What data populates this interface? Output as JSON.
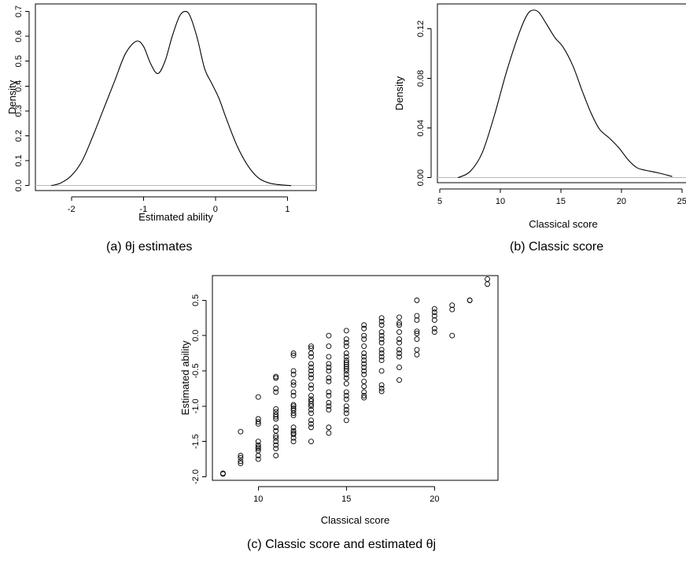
{
  "chart_data": [
    {
      "type": "line",
      "caption": "(a) θj estimates",
      "xlabel": "Estimated ability",
      "ylabel": "Density",
      "xlim": [
        -2.5,
        1.4
      ],
      "ylim": [
        -0.02,
        0.73
      ],
      "xticks": [
        -2,
        -1,
        0,
        1
      ],
      "xtick_labels": [
        "-2",
        "-1",
        "0",
        "1"
      ],
      "yticks": [
        0.0,
        0.1,
        0.2,
        0.3,
        0.4,
        0.5,
        0.6,
        0.7
      ],
      "ytick_labels": [
        "0.0",
        "0.1",
        "0.2",
        "0.3",
        "0.4",
        "0.5",
        "0.6",
        "0.7"
      ],
      "x": [
        -2.28,
        -2.15,
        -2.0,
        -1.85,
        -1.7,
        -1.55,
        -1.4,
        -1.25,
        -1.1,
        -1.0,
        -0.9,
        -0.8,
        -0.7,
        -0.6,
        -0.5,
        -0.42,
        -0.35,
        -0.25,
        -0.15,
        -0.05,
        0.05,
        0.15,
        0.3,
        0.45,
        0.6,
        0.75,
        0.9,
        1.05
      ],
      "y": [
        0.0,
        0.01,
        0.04,
        0.1,
        0.2,
        0.31,
        0.42,
        0.53,
        0.58,
        0.56,
        0.49,
        0.45,
        0.5,
        0.6,
        0.68,
        0.7,
        0.68,
        0.59,
        0.47,
        0.41,
        0.35,
        0.27,
        0.16,
        0.08,
        0.03,
        0.01,
        0.003,
        0.0
      ]
    },
    {
      "type": "line",
      "caption": "(b) Classic score",
      "xlabel": "Classical score",
      "ylabel": "Density",
      "xlim": [
        4.8,
        25.6
      ],
      "ylim": [
        -0.004,
        0.14
      ],
      "xticks": [
        5,
        10,
        15,
        20,
        25
      ],
      "xtick_labels": [
        "5",
        "10",
        "15",
        "20",
        "25"
      ],
      "yticks": [
        0.0,
        0.04,
        0.08,
        0.12
      ],
      "ytick_labels": [
        "0.00",
        "0.04",
        "0.08",
        "0.12"
      ],
      "x": [
        6.5,
        7.5,
        8.5,
        9.5,
        10.5,
        11.5,
        12.2,
        12.7,
        13.2,
        13.8,
        14.5,
        15.2,
        16.0,
        16.8,
        17.5,
        18.2,
        19.0,
        19.8,
        20.6,
        21.3,
        22.0,
        23.0,
        24.2
      ],
      "y": [
        0.0,
        0.005,
        0.02,
        0.05,
        0.085,
        0.115,
        0.131,
        0.135,
        0.133,
        0.124,
        0.113,
        0.105,
        0.09,
        0.069,
        0.052,
        0.039,
        0.032,
        0.024,
        0.014,
        0.008,
        0.006,
        0.004,
        0.001
      ]
    },
    {
      "type": "scatter",
      "caption": "(c) Classic score and estimated θj",
      "xlabel": "Classical score",
      "ylabel": "Estimated ability",
      "xlim": [
        7.4,
        23.6
      ],
      "ylim": [
        -2.05,
        0.85
      ],
      "xticks": [
        10,
        15,
        20
      ],
      "xtick_labels": [
        "10",
        "15",
        "20"
      ],
      "yticks": [
        -2.0,
        -1.5,
        -1.0,
        -0.5,
        0.0,
        0.5
      ],
      "ytick_labels": [
        "-2.0",
        "-1.5",
        "-1.0",
        "-0.5",
        "0.0",
        "0.5"
      ],
      "points": [
        [
          8,
          -1.95
        ],
        [
          8,
          -1.96
        ],
        [
          9,
          -1.36
        ],
        [
          9,
          -1.7
        ],
        [
          9,
          -1.73
        ],
        [
          9,
          -1.78
        ],
        [
          9,
          -1.81
        ],
        [
          10,
          -0.87
        ],
        [
          10,
          -1.18
        ],
        [
          10,
          -1.22
        ],
        [
          10,
          -1.25
        ],
        [
          10,
          -1.5
        ],
        [
          10,
          -1.55
        ],
        [
          10,
          -1.58
        ],
        [
          10,
          -1.6
        ],
        [
          10,
          -1.63
        ],
        [
          10,
          -1.7
        ],
        [
          10,
          -1.75
        ],
        [
          11,
          -0.58
        ],
        [
          11,
          -0.6
        ],
        [
          11,
          -0.75
        ],
        [
          11,
          -0.8
        ],
        [
          11,
          -1.04
        ],
        [
          11,
          -1.08
        ],
        [
          11,
          -1.12
        ],
        [
          11,
          -1.15
        ],
        [
          11,
          -1.18
        ],
        [
          11,
          -1.3
        ],
        [
          11,
          -1.35
        ],
        [
          11,
          -1.42
        ],
        [
          11,
          -1.45
        ],
        [
          11,
          -1.5
        ],
        [
          11,
          -1.55
        ],
        [
          11,
          -1.6
        ],
        [
          11,
          -1.7
        ],
        [
          12,
          -0.25
        ],
        [
          12,
          -0.28
        ],
        [
          12,
          -0.5
        ],
        [
          12,
          -0.55
        ],
        [
          12,
          -0.66
        ],
        [
          12,
          -0.7
        ],
        [
          12,
          -0.8
        ],
        [
          12,
          -0.85
        ],
        [
          12,
          -0.98
        ],
        [
          12,
          -1.0
        ],
        [
          12,
          -1.03
        ],
        [
          12,
          -1.06
        ],
        [
          12,
          -1.1
        ],
        [
          12,
          -1.13
        ],
        [
          12,
          -1.3
        ],
        [
          12,
          -1.35
        ],
        [
          12,
          -1.38
        ],
        [
          12,
          -1.4
        ],
        [
          12,
          -1.45
        ],
        [
          12,
          -1.5
        ],
        [
          13,
          -0.15
        ],
        [
          13,
          -0.18
        ],
        [
          13,
          -0.25
        ],
        [
          13,
          -0.3
        ],
        [
          13,
          -0.4
        ],
        [
          13,
          -0.45
        ],
        [
          13,
          -0.5
        ],
        [
          13,
          -0.55
        ],
        [
          13,
          -0.6
        ],
        [
          13,
          -0.7
        ],
        [
          13,
          -0.75
        ],
        [
          13,
          -0.85
        ],
        [
          13,
          -0.9
        ],
        [
          13,
          -0.93
        ],
        [
          13,
          -0.97
        ],
        [
          13,
          -1.0
        ],
        [
          13,
          -1.05
        ],
        [
          13,
          -1.1
        ],
        [
          13,
          -1.2
        ],
        [
          13,
          -1.25
        ],
        [
          13,
          -1.3
        ],
        [
          13,
          -1.5
        ],
        [
          14,
          0.0
        ],
        [
          14,
          -0.15
        ],
        [
          14,
          -0.3
        ],
        [
          14,
          -0.4
        ],
        [
          14,
          -0.45
        ],
        [
          14,
          -0.5
        ],
        [
          14,
          -0.6
        ],
        [
          14,
          -0.65
        ],
        [
          14,
          -0.8
        ],
        [
          14,
          -0.85
        ],
        [
          14,
          -0.95
        ],
        [
          14,
          -1.0
        ],
        [
          14,
          -1.05
        ],
        [
          14,
          -1.3
        ],
        [
          14,
          -1.38
        ],
        [
          15,
          0.07
        ],
        [
          15,
          -0.05
        ],
        [
          15,
          -0.1
        ],
        [
          15,
          -0.15
        ],
        [
          15,
          -0.25
        ],
        [
          15,
          -0.3
        ],
        [
          15,
          -0.35
        ],
        [
          15,
          -0.38
        ],
        [
          15,
          -0.41
        ],
        [
          15,
          -0.44
        ],
        [
          15,
          -0.47
        ],
        [
          15,
          -0.5
        ],
        [
          15,
          -0.55
        ],
        [
          15,
          -0.6
        ],
        [
          15,
          -0.68
        ],
        [
          15,
          -0.8
        ],
        [
          15,
          -0.85
        ],
        [
          15,
          -0.9
        ],
        [
          15,
          -1.0
        ],
        [
          15,
          -1.05
        ],
        [
          15,
          -1.1
        ],
        [
          15,
          -1.2
        ],
        [
          16,
          0.15
        ],
        [
          16,
          0.1
        ],
        [
          16,
          0.0
        ],
        [
          16,
          -0.05
        ],
        [
          16,
          -0.15
        ],
        [
          16,
          -0.25
        ],
        [
          16,
          -0.3
        ],
        [
          16,
          -0.35
        ],
        [
          16,
          -0.4
        ],
        [
          16,
          -0.45
        ],
        [
          16,
          -0.5
        ],
        [
          16,
          -0.55
        ],
        [
          16,
          -0.65
        ],
        [
          16,
          -0.72
        ],
        [
          16,
          -0.8
        ],
        [
          16,
          -0.85
        ],
        [
          16,
          -0.88
        ],
        [
          17,
          0.25
        ],
        [
          17,
          0.2
        ],
        [
          17,
          0.15
        ],
        [
          17,
          0.05
        ],
        [
          17,
          0.0
        ],
        [
          17,
          -0.05
        ],
        [
          17,
          -0.1
        ],
        [
          17,
          -0.2
        ],
        [
          17,
          -0.25
        ],
        [
          17,
          -0.3
        ],
        [
          17,
          -0.35
        ],
        [
          17,
          -0.5
        ],
        [
          17,
          -0.7
        ],
        [
          17,
          -0.75
        ],
        [
          17,
          -0.79
        ],
        [
          18,
          0.26
        ],
        [
          18,
          0.18
        ],
        [
          18,
          0.15
        ],
        [
          18,
          0.05
        ],
        [
          18,
          -0.05
        ],
        [
          18,
          -0.1
        ],
        [
          18,
          -0.2
        ],
        [
          18,
          -0.25
        ],
        [
          18,
          -0.3
        ],
        [
          18,
          -0.45
        ],
        [
          18,
          -0.63
        ],
        [
          19,
          0.5
        ],
        [
          19,
          0.28
        ],
        [
          19,
          0.22
        ],
        [
          19,
          0.06
        ],
        [
          19,
          0.03
        ],
        [
          19,
          -0.05
        ],
        [
          19,
          -0.2
        ],
        [
          19,
          -0.27
        ],
        [
          20,
          0.38
        ],
        [
          20,
          0.33
        ],
        [
          20,
          0.28
        ],
        [
          20,
          0.22
        ],
        [
          20,
          0.1
        ],
        [
          20,
          0.05
        ],
        [
          21,
          0.43
        ],
        [
          21,
          0.37
        ],
        [
          21,
          0.0
        ],
        [
          22,
          0.5
        ],
        [
          22,
          0.5
        ],
        [
          23,
          0.8
        ],
        [
          23,
          0.73
        ]
      ]
    }
  ]
}
